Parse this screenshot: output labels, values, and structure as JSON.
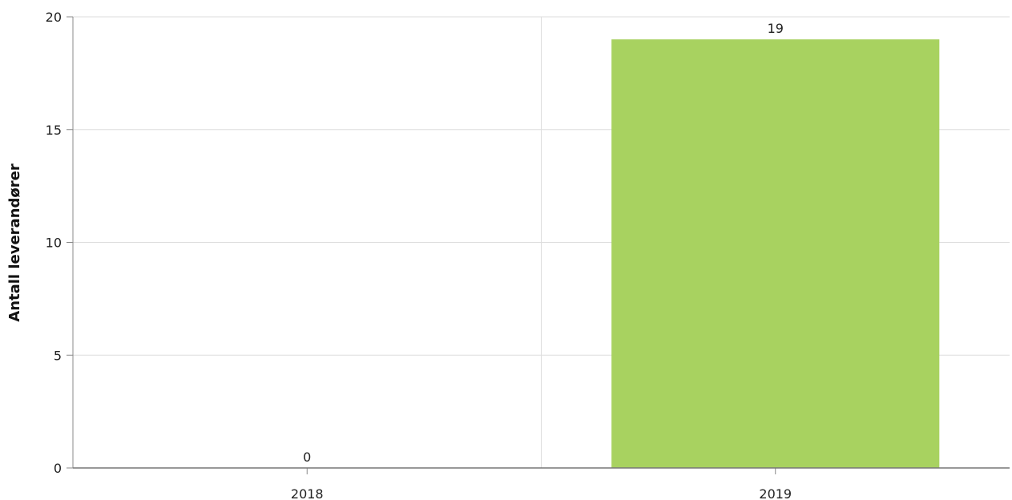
{
  "chart_data": {
    "type": "bar",
    "categories": [
      "2018",
      "2019"
    ],
    "values": [
      0,
      19
    ],
    "ylabel": "Antall leverandører",
    "ylim": [
      0,
      20
    ],
    "yticks": [
      0,
      5,
      10,
      15,
      20
    ],
    "grid": true,
    "bar_color": "#a8d260",
    "data_labels": true
  }
}
